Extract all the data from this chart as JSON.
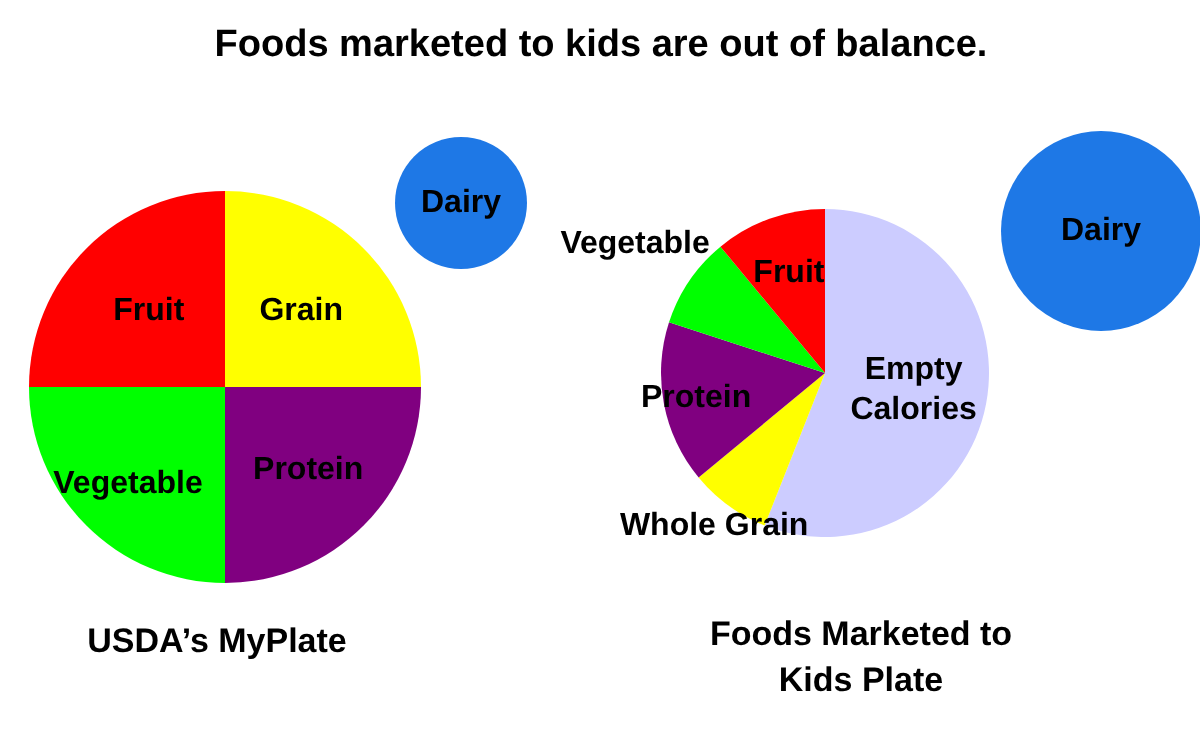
{
  "chart_data": [
    {
      "type": "pie",
      "title": "Foods marketed to kids are out of balance.",
      "categories": [
        "Grain",
        "Protein",
        "Vegetable",
        "Fruit"
      ],
      "values": [
        25,
        25,
        25,
        25
      ],
      "colors": [
        "#ffff00",
        "#800080",
        "#00ff00",
        "#ff0000"
      ],
      "annotations": [
        "USDA’s MyPlate"
      ]
    },
    {
      "type": "pie",
      "categories": [
        "Dairy"
      ],
      "values": [
        100
      ],
      "colors": [
        "#1e78e6"
      ]
    },
    {
      "type": "pie",
      "categories": [
        "Empty Calories",
        "Whole Grain",
        "Protein",
        "Vegetable",
        "Fruit"
      ],
      "values": [
        56,
        8,
        16,
        9,
        11
      ],
      "colors": [
        "#ccccff",
        "#ffff00",
        "#800080",
        "#00ff00",
        "#ff0000"
      ],
      "annotations": [
        "Foods Marketed to Kids Plate"
      ]
    },
    {
      "type": "pie",
      "categories": [
        "Dairy"
      ],
      "values": [
        100
      ],
      "colors": [
        "#1e78e6"
      ]
    }
  ]
}
